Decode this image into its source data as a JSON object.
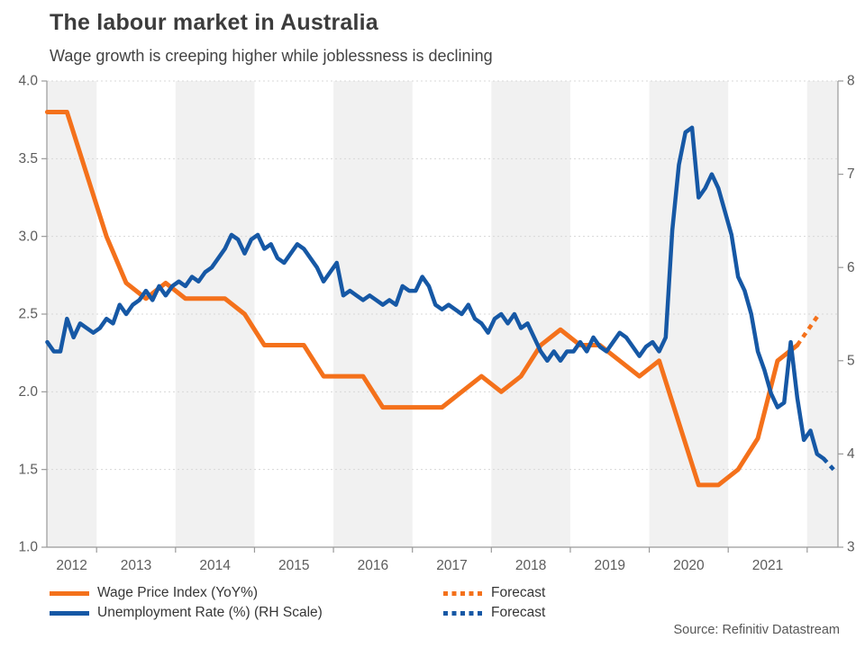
{
  "header": {
    "title": "The labour market in Australia",
    "subtitle": "Wage growth is creeping higher while joblessness is declining"
  },
  "source": "Source: Refinitiv Datastream",
  "colors": {
    "wpi_orange": "#F4711B",
    "unemployment_blue": "#1658A5",
    "year_band": "#F1F1F1",
    "gridline": "#D8D8D8",
    "axis": "#9A9A9A",
    "title_text": "#3C3C3C",
    "subtitle_text": "#424242",
    "tick_text": "#5C5C5C",
    "legend_text": "#363636",
    "source_text": "#575757"
  },
  "legend": [
    {
      "label": "Wage Price Index (YoY%)",
      "color_key": "wpi_orange",
      "style": "solid"
    },
    {
      "label": "Forecast",
      "color_key": "wpi_orange",
      "style": "dashed"
    },
    {
      "label": "Unemployment Rate (%) (RH Scale)",
      "color_key": "unemployment_blue",
      "style": "solid"
    },
    {
      "label": "Forecast",
      "color_key": "unemployment_blue",
      "style": "dashed"
    }
  ],
  "chart_data": {
    "type": "line",
    "title": "The labour market in Australia",
    "subtitle": "Wage growth is creeping higher while joblessness is declining",
    "grid": "dotted horizontal at left-axis ticks",
    "legend_position": "bottom",
    "x_axis": {
      "range": [
        2012.37,
        2022.39
      ],
      "first_label_year": 2012,
      "tick_labels": [
        "2012",
        "2013",
        "2014",
        "2015",
        "2016",
        "2017",
        "2018",
        "2019",
        "2020",
        "2021"
      ],
      "shaded_years": [
        2012,
        2014,
        2016,
        2018,
        2020,
        2022
      ]
    },
    "left_axis": {
      "name": "Wage Price Index (YoY%)",
      "range": [
        1.0,
        4.0
      ],
      "tick_values": [
        1.0,
        1.5,
        2.0,
        2.5,
        3.0,
        3.5,
        4.0
      ],
      "tick_labels": [
        "1.0",
        "1.5",
        "2.0",
        "2.5",
        "3.0",
        "3.5",
        "4.0"
      ]
    },
    "right_axis": {
      "name": "Unemployment Rate (%)",
      "range": [
        3,
        8
      ],
      "tick_values": [
        3,
        4,
        5,
        6,
        7,
        8
      ],
      "tick_labels": [
        "3",
        "4",
        "5",
        "6",
        "7",
        "8"
      ]
    },
    "series": [
      {
        "name": "Wage Price Index (YoY%)",
        "axis": "left",
        "style": "solid",
        "color_key": "wpi_orange",
        "frequency": "quarterly",
        "x_start": 2012.375,
        "values": [
          3.8,
          3.8,
          3.4,
          3.0,
          2.7,
          2.6,
          2.7,
          2.6,
          2.6,
          2.6,
          2.5,
          2.3,
          2.3,
          2.3,
          2.1,
          2.1,
          2.1,
          1.9,
          1.9,
          1.9,
          1.9,
          2.0,
          2.1,
          2.0,
          2.1,
          2.3,
          2.4,
          2.3,
          2.3,
          2.2,
          2.1,
          2.2,
          1.8,
          1.4,
          1.4,
          1.5,
          1.7,
          2.2,
          2.3
        ]
      },
      {
        "name": "Wage Price Index forecast",
        "axis": "left",
        "style": "dashed",
        "color_key": "wpi_orange",
        "x": [
          2021.875,
          2022.15
        ],
        "values": [
          2.3,
          2.5
        ]
      },
      {
        "name": "Unemployment Rate (%)",
        "axis": "right",
        "style": "solid",
        "color_key": "unemployment_blue",
        "frequency": "monthly",
        "x_start": 2012.375,
        "values": [
          5.2,
          5.1,
          5.1,
          5.45,
          5.25,
          5.4,
          5.35,
          5.3,
          5.35,
          5.45,
          5.4,
          5.6,
          5.5,
          5.6,
          5.65,
          5.75,
          5.65,
          5.8,
          5.7,
          5.8,
          5.85,
          5.8,
          5.9,
          5.85,
          5.95,
          6.0,
          6.1,
          6.2,
          6.35,
          6.3,
          6.15,
          6.3,
          6.35,
          6.2,
          6.25,
          6.1,
          6.05,
          6.15,
          6.25,
          6.2,
          6.1,
          6.0,
          5.85,
          5.95,
          6.05,
          5.7,
          5.75,
          5.7,
          5.65,
          5.7,
          5.65,
          5.6,
          5.65,
          5.6,
          5.8,
          5.75,
          5.75,
          5.9,
          5.8,
          5.6,
          5.55,
          5.6,
          5.55,
          5.5,
          5.6,
          5.45,
          5.4,
          5.3,
          5.45,
          5.5,
          5.4,
          5.5,
          5.35,
          5.4,
          5.25,
          5.1,
          5.0,
          5.1,
          5.0,
          5.1,
          5.1,
          5.2,
          5.1,
          5.25,
          5.15,
          5.1,
          5.2,
          5.3,
          5.25,
          5.15,
          5.05,
          5.15,
          5.2,
          5.1,
          5.25,
          6.4,
          7.1,
          7.45,
          7.5,
          6.75,
          6.85,
          7.0,
          6.85,
          6.6,
          6.35,
          5.9,
          5.75,
          5.5,
          5.1,
          4.9,
          4.65,
          4.5,
          4.55,
          5.2,
          4.6,
          4.15,
          4.25,
          4.0,
          3.95
        ]
      },
      {
        "name": "Unemployment Rate forecast",
        "axis": "right",
        "style": "dashed",
        "color_key": "unemployment_blue",
        "x": [
          2022.208,
          2022.37
        ],
        "values": [
          3.95,
          3.8
        ]
      }
    ]
  }
}
